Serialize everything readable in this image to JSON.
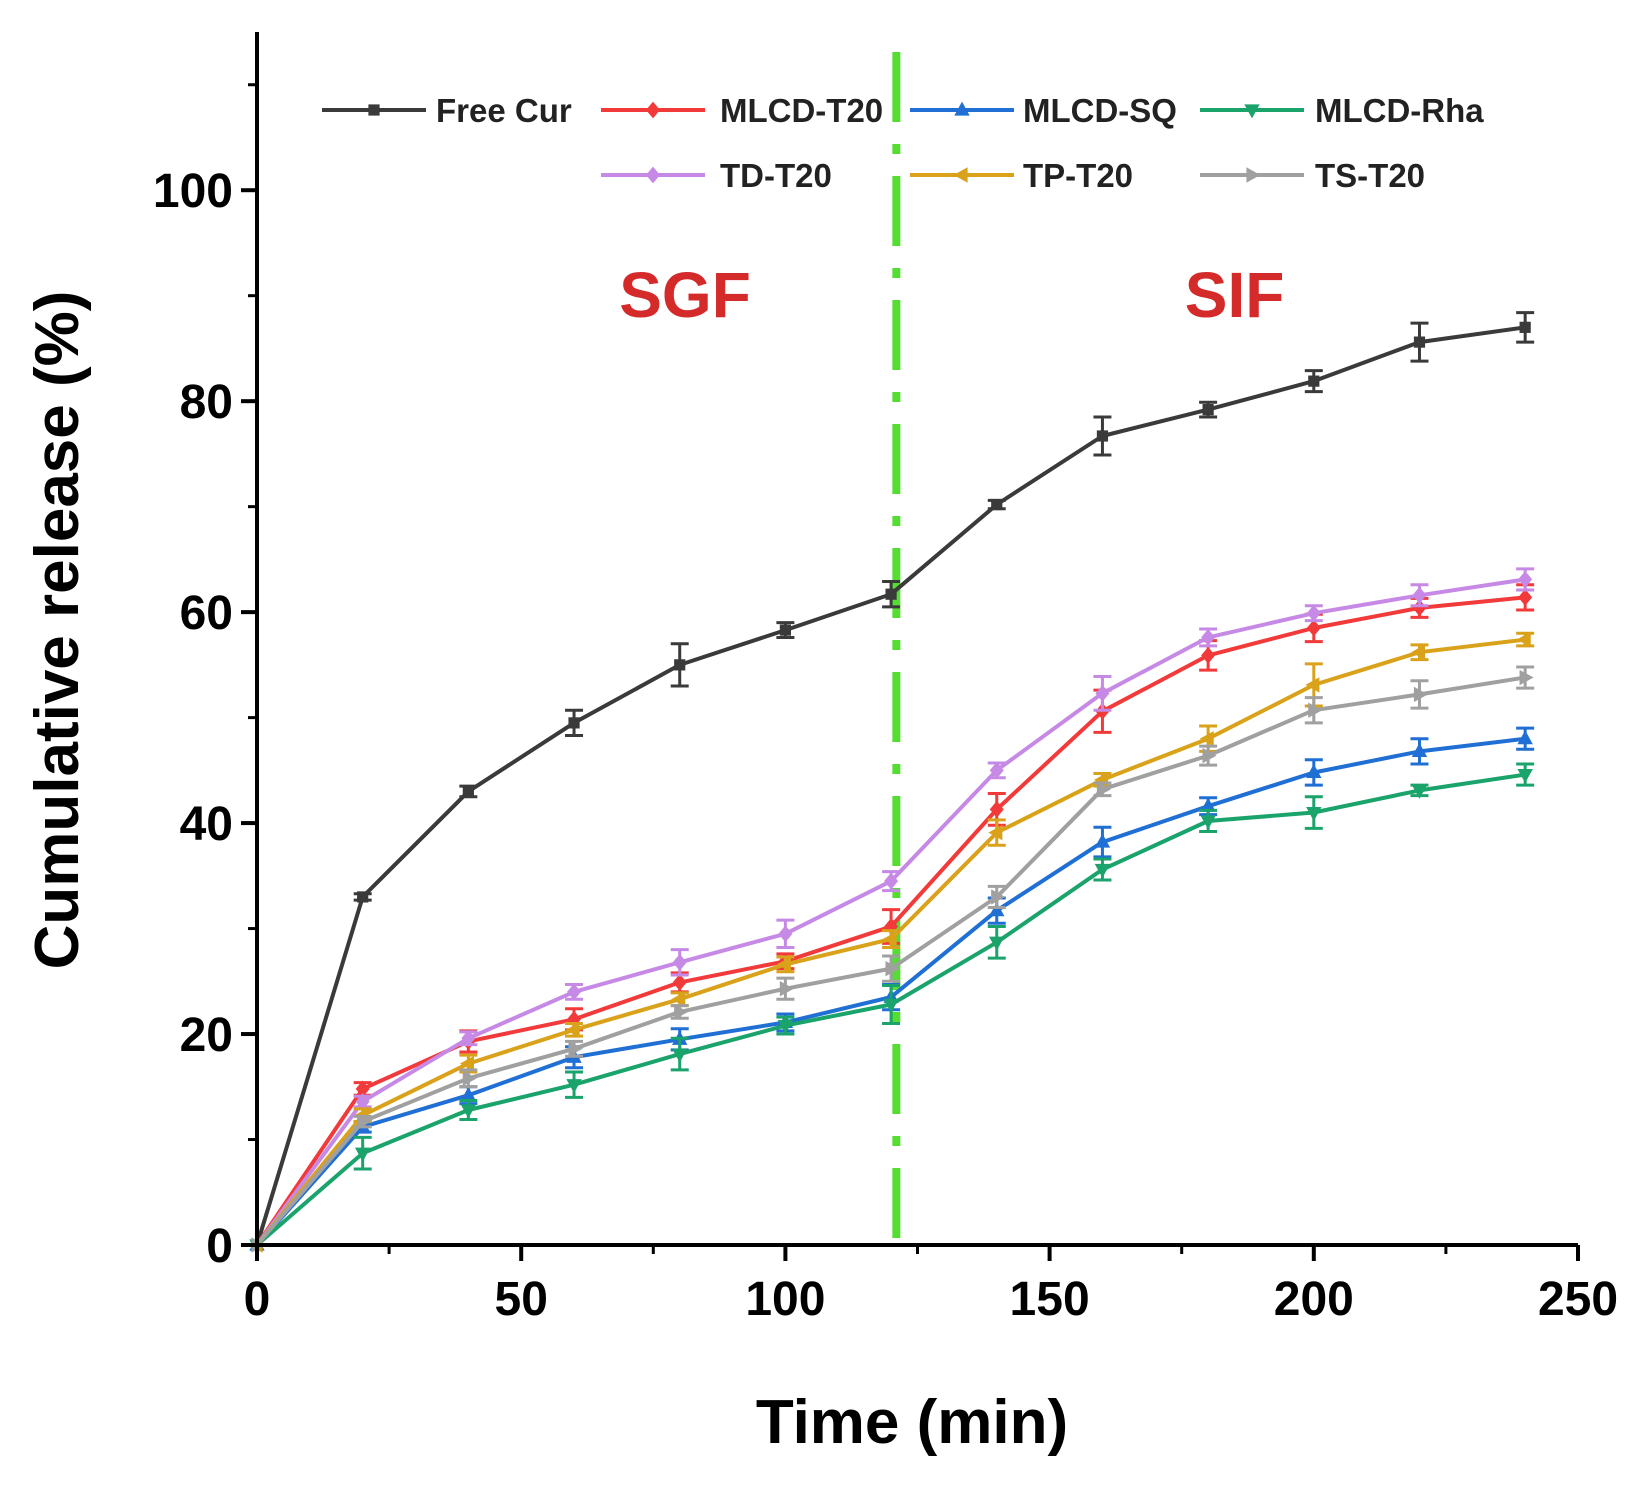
{
  "chart_data": {
    "type": "line",
    "title": "",
    "xlabel": "Time (min)",
    "ylabel": "Cumulative release (%)",
    "xlim": [
      0,
      250
    ],
    "ylim": [
      0,
      115
    ],
    "xticks": [
      0,
      50,
      100,
      150,
      200,
      250
    ],
    "yticks": [
      0,
      20,
      40,
      60,
      80,
      100
    ],
    "grid": false,
    "legend_position": "top",
    "x": [
      0,
      20,
      40,
      60,
      80,
      100,
      120,
      140,
      160,
      180,
      200,
      220,
      240
    ],
    "divider": {
      "x": 121,
      "style": "dash-dot",
      "color": "#55dd33"
    },
    "annotations": [
      {
        "text": "SGF",
        "x": 81,
        "y": 88,
        "color": "#d42a2a"
      },
      {
        "text": "SIF",
        "x": 185,
        "y": 88,
        "color": "#d42a2a"
      }
    ],
    "series": [
      {
        "name": "Free Cur",
        "color": "#3a3a3a",
        "marker": "square",
        "values": [
          0,
          33,
          43,
          49.5,
          55,
          58.3,
          61.7,
          70.2,
          76.7,
          79.2,
          81.9,
          85.6,
          87
        ],
        "errors": [
          0,
          0.3,
          0.5,
          1.2,
          2.0,
          0.7,
          1.2,
          0.4,
          1.8,
          0.7,
          1.0,
          1.8,
          1.4
        ]
      },
      {
        "name": "MLCD-T20",
        "color": "#f23a3a",
        "marker": "diamond",
        "values": [
          0,
          14.8,
          19.3,
          21.4,
          24.9,
          26.9,
          30.2,
          41.3,
          50.6,
          55.9,
          58.5,
          60.4,
          61.4
        ],
        "errors": [
          0,
          0.6,
          1.0,
          1.0,
          0.9,
          0.7,
          1.6,
          1.5,
          2.0,
          1.4,
          1.3,
          0.9,
          1.2
        ]
      },
      {
        "name": "MLCD-SQ",
        "color": "#1f6fd4",
        "marker": "triangle-up",
        "values": [
          0,
          11.2,
          14.2,
          17.8,
          19.5,
          21.1,
          23.5,
          31.7,
          38.2,
          41.6,
          44.8,
          46.8,
          48
        ],
        "errors": [
          0,
          0.5,
          0.8,
          1.0,
          1.0,
          0.8,
          1.2,
          1.2,
          1.4,
          0.8,
          1.2,
          1.2,
          1.0
        ]
      },
      {
        "name": "MLCD-Rha",
        "color": "#1aa36b",
        "marker": "triangle-down",
        "values": [
          0,
          8.7,
          12.8,
          15.2,
          18.1,
          20.8,
          22.8,
          28.7,
          35.6,
          40.2,
          41,
          43.1,
          44.6
        ],
        "errors": [
          0,
          1.5,
          0.9,
          1.2,
          1.5,
          0.8,
          1.8,
          1.5,
          1.0,
          1.0,
          1.5,
          0.5,
          1.0
        ]
      },
      {
        "name": "TD-T20",
        "color": "#c68ae6",
        "marker": "diamond",
        "values": [
          0,
          13.6,
          19.6,
          24,
          26.8,
          29.5,
          34.5,
          45,
          52.3,
          57.6,
          59.9,
          61.6,
          63.1
        ],
        "errors": [
          0,
          0.5,
          0.6,
          0.7,
          1.2,
          1.3,
          0.9,
          0.7,
          1.6,
          0.8,
          0.7,
          1.0,
          1.0
        ]
      },
      {
        "name": "TP-T20",
        "color": "#d9a21a",
        "marker": "triangle-left",
        "values": [
          0,
          12.3,
          17.2,
          20.4,
          23.3,
          26.6,
          29,
          39.1,
          44.1,
          48,
          53.1,
          56.2,
          57.4
        ],
        "errors": [
          0,
          0.6,
          0.8,
          0.6,
          0.6,
          0.7,
          0.8,
          1.2,
          0.6,
          1.2,
          2.0,
          0.7,
          0.6
        ]
      },
      {
        "name": "TS-T20",
        "color": "#a0a0a0",
        "marker": "triangle-right",
        "values": [
          0,
          11.7,
          15.8,
          18.6,
          22.1,
          24.3,
          26.2,
          33,
          43.2,
          46.4,
          50.7,
          52.2,
          53.8
        ],
        "errors": [
          0,
          0.5,
          0.8,
          0.7,
          0.6,
          1.0,
          1.2,
          1.0,
          0.6,
          0.9,
          1.2,
          1.3,
          1.0
        ]
      }
    ]
  }
}
